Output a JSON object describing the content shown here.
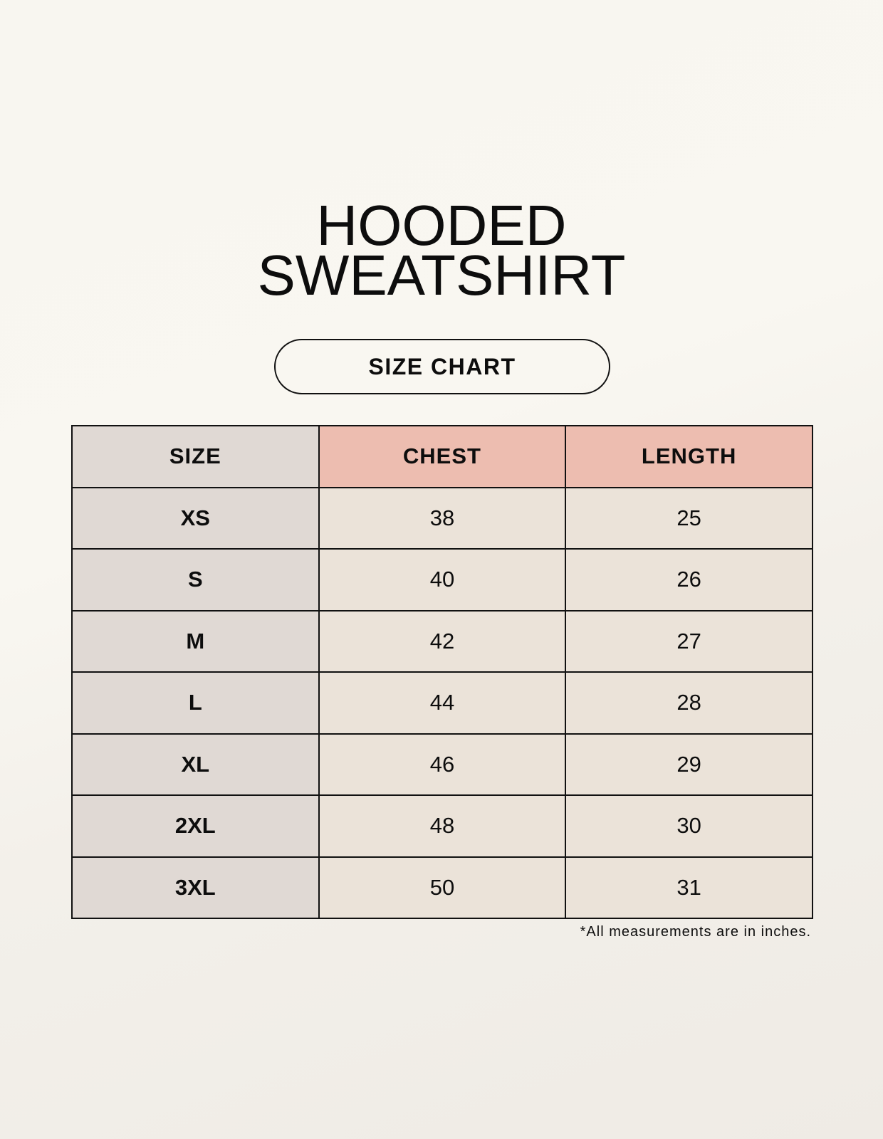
{
  "title": {
    "line1": "HOODED",
    "line2": "SWEATSHIRT"
  },
  "subtitle": "SIZE CHART",
  "table": {
    "headers": [
      "SIZE",
      "CHEST",
      "LENGTH"
    ],
    "rows": [
      [
        "XS",
        "38",
        "25"
      ],
      [
        "S",
        "40",
        "26"
      ],
      [
        "M",
        "42",
        "27"
      ],
      [
        "L",
        "44",
        "28"
      ],
      [
        "XL",
        "46",
        "29"
      ],
      [
        "2XL",
        "48",
        "30"
      ],
      [
        "3XL",
        "50",
        "31"
      ]
    ]
  },
  "note": "*All measurements are in inches.",
  "colors": {
    "size_column": "#e0d9d4",
    "header_accent": "#edbdb0",
    "value_cells": "#ebe3d9"
  }
}
